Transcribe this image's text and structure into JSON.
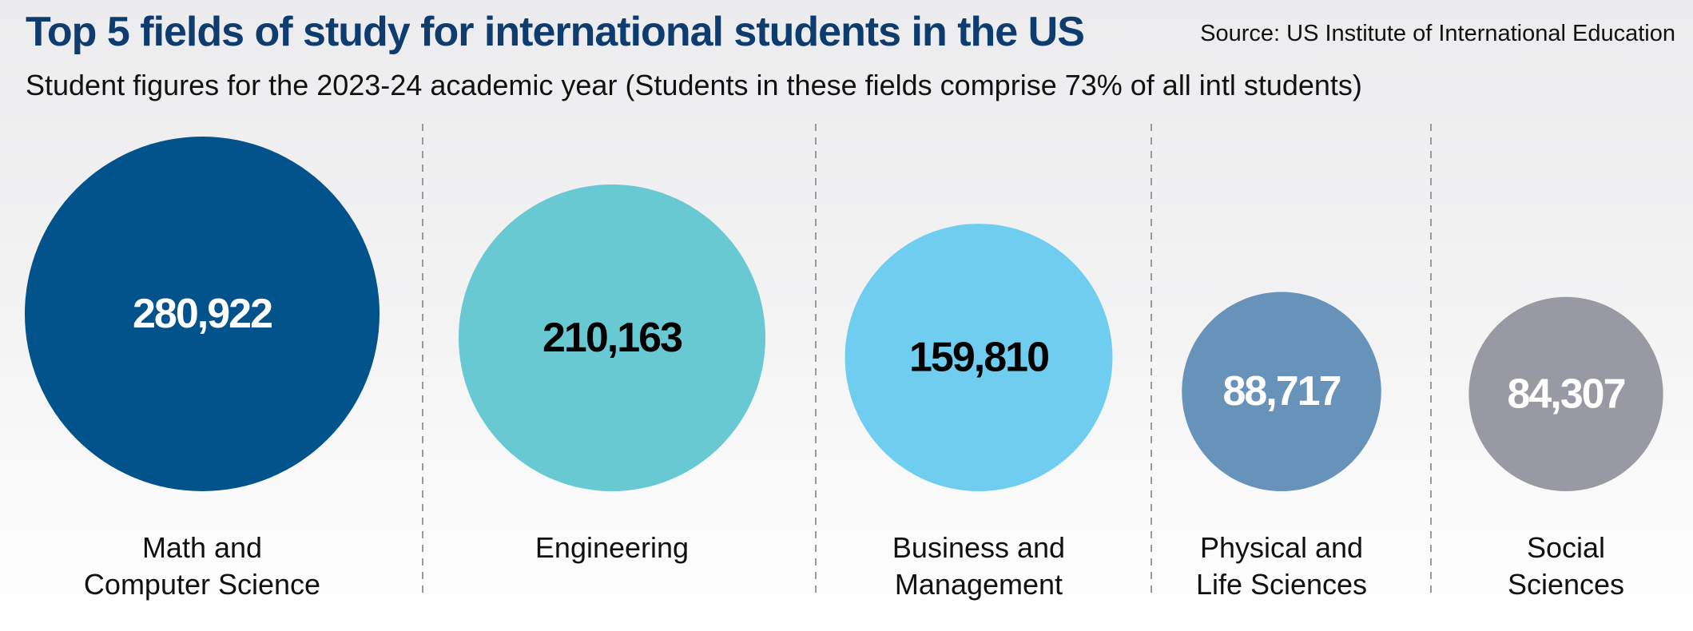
{
  "header": {
    "title": "Top 5 fields of study for international students in the US",
    "source": "Source: US Institute of International Education",
    "subtitle": "Student figures for the 2023-24 academic year (Students in these fields comprise 73% of all intl students)"
  },
  "chart_data": {
    "type": "bubble",
    "title": "Top 5 fields of study for international students in the US",
    "subtitle": "Student figures for the 2023-24 academic year (Students in these fields comprise 73% of all intl students)",
    "categories": [
      [
        "Math and",
        "Computer Science"
      ],
      [
        "Engineering"
      ],
      [
        "Business and",
        "Management"
      ],
      [
        "Physical and",
        "Life Sciences"
      ],
      [
        "Social",
        "Sciences"
      ]
    ],
    "values": [
      280922,
      210163,
      159810,
      88717,
      84307
    ],
    "value_labels": [
      "280,922",
      "210,163",
      "159,810",
      "88,717",
      "84,307"
    ],
    "colors": [
      "#02528c",
      "#69c9d3",
      "#6fcdef",
      "#6793bb",
      "#9999a4"
    ],
    "label_colors": [
      "#ffffff",
      "#000000",
      "#000000",
      "#ffffff",
      "#ffffff"
    ],
    "separators": "dashed"
  }
}
